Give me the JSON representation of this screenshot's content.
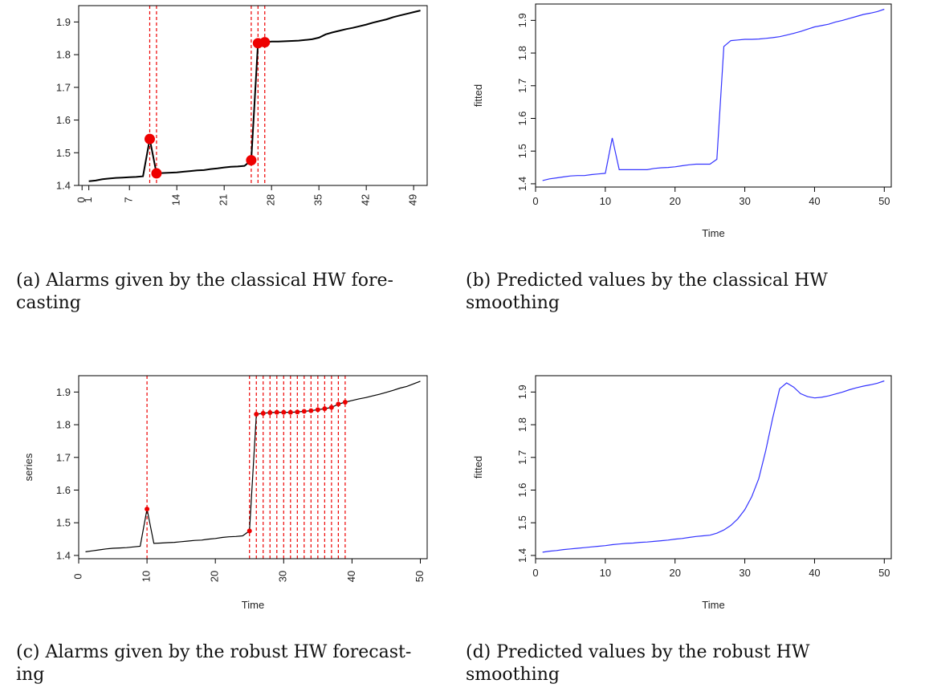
{
  "captions": {
    "a": {
      "label": "(a)",
      "line1": "Alarms given by the classical HW fore-",
      "line2": "casting"
    },
    "b": {
      "label": "(b)",
      "line1": "Predicted values by the classical HW",
      "line2": "smoothing"
    },
    "c": {
      "label": "(c)",
      "line1": "Alarms given by the robust HW forecast-",
      "line2": "ing"
    },
    "d": {
      "label": "(d)",
      "line1": "Predicted values by the robust HW",
      "line2": "smoothing"
    }
  },
  "chart_data": [
    {
      "id": "a",
      "type": "line",
      "xlabel": "",
      "ylabel": "",
      "xlim": [
        -0.5,
        51
      ],
      "ylim": [
        1.4,
        1.95
      ],
      "xticks": [
        0,
        1,
        7,
        14,
        21,
        28,
        35,
        42,
        49
      ],
      "xtick_labels": [
        "0",
        "1",
        "7",
        "14",
        "21",
        "28",
        "35",
        "42",
        "49"
      ],
      "yticks": [
        1.4,
        1.5,
        1.6,
        1.7,
        1.8,
        1.9
      ],
      "ytick_labels": [
        "1.4",
        "1.5",
        "1.6",
        "1.7",
        "1.8",
        "1.9"
      ],
      "x_ticklabels_rotated": true,
      "grid": false,
      "series": [
        {
          "color": "#000000",
          "x": [
            1,
            2,
            3,
            4,
            5,
            6,
            7,
            8,
            9,
            10,
            11,
            12,
            13,
            14,
            15,
            16,
            17,
            18,
            19,
            20,
            21,
            22,
            23,
            24,
            25,
            26,
            27,
            28,
            29,
            30,
            31,
            32,
            33,
            34,
            35,
            36,
            37,
            38,
            39,
            40,
            41,
            42,
            43,
            44,
            45,
            46,
            47,
            48,
            49,
            50
          ],
          "y": [
            1.413,
            1.415,
            1.419,
            1.421,
            1.423,
            1.424,
            1.425,
            1.426,
            1.428,
            1.542,
            1.437,
            1.438,
            1.439,
            1.44,
            1.442,
            1.444,
            1.446,
            1.447,
            1.45,
            1.452,
            1.455,
            1.457,
            1.458,
            1.46,
            1.477,
            1.835,
            1.838,
            1.84,
            1.84,
            1.841,
            1.842,
            1.843,
            1.845,
            1.847,
            1.852,
            1.862,
            1.868,
            1.873,
            1.878,
            1.882,
            1.887,
            1.892,
            1.898,
            1.903,
            1.908,
            1.915,
            1.92,
            1.925,
            1.93,
            1.935
          ]
        }
      ],
      "alarms": {
        "color": "#ee0000",
        "x": [
          10,
          11,
          25,
          26,
          27
        ],
        "y": [
          1.542,
          1.437,
          1.477,
          1.835,
          1.838
        ]
      }
    },
    {
      "id": "b",
      "type": "line",
      "xlabel": "Time",
      "ylabel": "fitted",
      "xlim": [
        0,
        51
      ],
      "ylim": [
        1.39,
        1.95
      ],
      "xticks": [
        0,
        10,
        20,
        30,
        40,
        50
      ],
      "xtick_labels": [
        "0",
        "10",
        "20",
        "30",
        "40",
        "50"
      ],
      "yticks": [
        1.4,
        1.5,
        1.6,
        1.7,
        1.8,
        1.9
      ],
      "ytick_labels": [
        "1.4",
        "1.5",
        "1.6",
        "1.7",
        "1.8",
        "1.9"
      ],
      "y_ticklabels_rotated": true,
      "grid": false,
      "series": [
        {
          "color": "#3333ff",
          "x": [
            1,
            2,
            3,
            4,
            5,
            6,
            7,
            8,
            9,
            10,
            11,
            12,
            13,
            14,
            15,
            16,
            17,
            18,
            19,
            20,
            21,
            22,
            23,
            24,
            25,
            26,
            27,
            28,
            29,
            30,
            31,
            32,
            33,
            34,
            35,
            36,
            37,
            38,
            39,
            40,
            41,
            42,
            43,
            44,
            45,
            46,
            47,
            48,
            49,
            50
          ],
          "y": [
            1.41,
            1.415,
            1.418,
            1.421,
            1.424,
            1.425,
            1.425,
            1.428,
            1.43,
            1.432,
            1.54,
            1.443,
            1.443,
            1.443,
            1.443,
            1.443,
            1.447,
            1.449,
            1.45,
            1.452,
            1.455,
            1.458,
            1.46,
            1.46,
            1.46,
            1.475,
            1.82,
            1.838,
            1.84,
            1.842,
            1.842,
            1.843,
            1.845,
            1.847,
            1.85,
            1.855,
            1.86,
            1.866,
            1.873,
            1.88,
            1.884,
            1.888,
            1.895,
            1.9,
            1.906,
            1.912,
            1.918,
            1.922,
            1.927,
            1.934
          ]
        }
      ]
    },
    {
      "id": "c",
      "type": "line",
      "xlabel": "Time",
      "ylabel": "series",
      "xlim": [
        0,
        51
      ],
      "ylim": [
        1.39,
        1.95
      ],
      "xticks": [
        0,
        10,
        20,
        30,
        40,
        50
      ],
      "xtick_labels": [
        "0",
        "10",
        "20",
        "30",
        "40",
        "50"
      ],
      "yticks": [
        1.4,
        1.5,
        1.6,
        1.7,
        1.8,
        1.9
      ],
      "ytick_labels": [
        "1.4",
        "1.5",
        "1.6",
        "1.7",
        "1.8",
        "1.9"
      ],
      "x_ticklabels_rotated": true,
      "grid": false,
      "series": [
        {
          "color": "#000000",
          "x": [
            1,
            2,
            3,
            4,
            5,
            6,
            7,
            8,
            9,
            10,
            11,
            12,
            13,
            14,
            15,
            16,
            17,
            18,
            19,
            20,
            21,
            22,
            23,
            24,
            25,
            26,
            27,
            28,
            29,
            30,
            31,
            32,
            33,
            34,
            35,
            36,
            37,
            38,
            39,
            40,
            41,
            42,
            43,
            44,
            45,
            46,
            47,
            48,
            49,
            50
          ],
          "y": [
            1.411,
            1.414,
            1.417,
            1.42,
            1.422,
            1.423,
            1.424,
            1.426,
            1.428,
            1.542,
            1.437,
            1.438,
            1.439,
            1.44,
            1.442,
            1.444,
            1.446,
            1.447,
            1.45,
            1.452,
            1.455,
            1.457,
            1.458,
            1.46,
            1.475,
            1.832,
            1.835,
            1.837,
            1.838,
            1.838,
            1.838,
            1.839,
            1.841,
            1.843,
            1.846,
            1.849,
            1.853,
            1.863,
            1.869,
            1.874,
            1.879,
            1.883,
            1.888,
            1.893,
            1.899,
            1.905,
            1.912,
            1.917,
            1.925,
            1.933
          ]
        }
      ],
      "alarms": {
        "color": "#ee0000",
        "x": [
          10,
          25,
          26,
          27,
          28,
          29,
          30,
          31,
          32,
          33,
          34,
          35,
          36,
          37,
          38,
          39
        ],
        "y": [
          1.542,
          1.475,
          1.832,
          1.835,
          1.837,
          1.838,
          1.838,
          1.838,
          1.839,
          1.841,
          1.843,
          1.846,
          1.849,
          1.853,
          1.863,
          1.869
        ]
      }
    },
    {
      "id": "d",
      "type": "line",
      "xlabel": "Time",
      "ylabel": "fitted",
      "xlim": [
        0,
        51
      ],
      "ylim": [
        1.39,
        1.95
      ],
      "xticks": [
        0,
        10,
        20,
        30,
        40,
        50
      ],
      "xtick_labels": [
        "0",
        "10",
        "20",
        "30",
        "40",
        "50"
      ],
      "yticks": [
        1.4,
        1.5,
        1.6,
        1.7,
        1.8,
        1.9
      ],
      "ytick_labels": [
        "1.4",
        "1.5",
        "1.6",
        "1.7",
        "1.8",
        "1.9"
      ],
      "y_ticklabels_rotated": true,
      "grid": false,
      "series": [
        {
          "color": "#3333ff",
          "x": [
            1,
            2,
            3,
            4,
            5,
            6,
            7,
            8,
            9,
            10,
            11,
            12,
            13,
            14,
            15,
            16,
            17,
            18,
            19,
            20,
            21,
            22,
            23,
            24,
            25,
            26,
            27,
            28,
            29,
            30,
            31,
            32,
            33,
            34,
            35,
            36,
            37,
            38,
            39,
            40,
            41,
            42,
            43,
            44,
            45,
            46,
            47,
            48,
            49,
            50
          ],
          "y": [
            1.41,
            1.413,
            1.415,
            1.418,
            1.42,
            1.422,
            1.424,
            1.426,
            1.428,
            1.43,
            1.433,
            1.435,
            1.437,
            1.438,
            1.44,
            1.441,
            1.443,
            1.445,
            1.447,
            1.45,
            1.452,
            1.455,
            1.458,
            1.46,
            1.462,
            1.468,
            1.478,
            1.492,
            1.512,
            1.54,
            1.58,
            1.635,
            1.72,
            1.82,
            1.91,
            1.928,
            1.915,
            1.895,
            1.886,
            1.882,
            1.884,
            1.888,
            1.894,
            1.9,
            1.907,
            1.913,
            1.918,
            1.922,
            1.927,
            1.934
          ]
        }
      ]
    }
  ]
}
